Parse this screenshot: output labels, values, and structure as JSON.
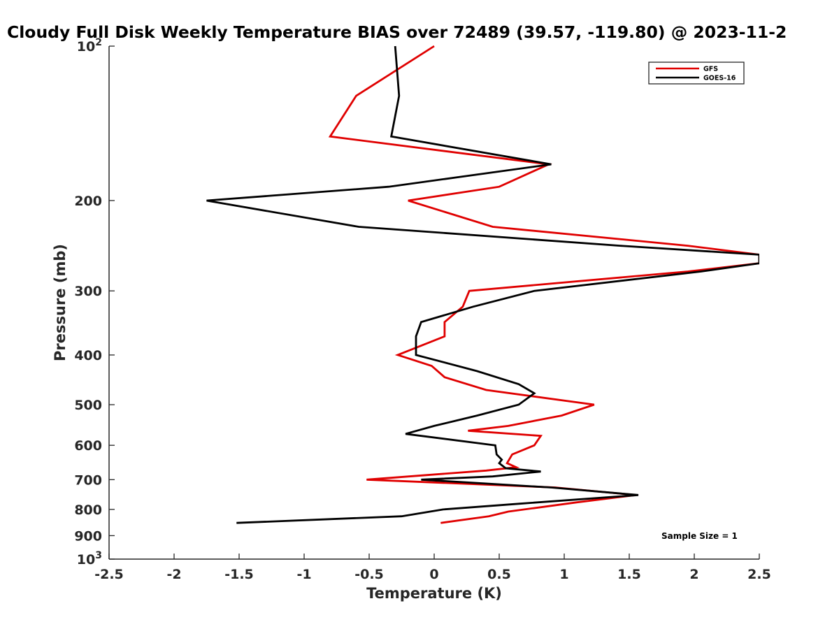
{
  "chart_data": {
    "type": "line",
    "title": "Cloudy Full Disk Weekly Temperature BIAS over 72489 (39.57, -119.80) @ 2023-11-2",
    "xlabel": "Temperature (K)",
    "ylabel": "Pressure (mb)",
    "xlim": [
      -2.5,
      2.5
    ],
    "ylim": [
      100,
      1000
    ],
    "y_scale": "log",
    "y_reversed": true,
    "x_ticks": [
      "-2.5",
      "-2",
      "-1.5",
      "-1",
      "-0.5",
      "0",
      "0.5",
      "1",
      "1.5",
      "2",
      "2.5"
    ],
    "y_ticks": [
      {
        "value": 100,
        "base": "10",
        "exp": "2"
      },
      {
        "value": 200,
        "label": "200"
      },
      {
        "value": 300,
        "label": "300"
      },
      {
        "value": 400,
        "label": "400"
      },
      {
        "value": 500,
        "label": "500"
      },
      {
        "value": 600,
        "label": "600"
      },
      {
        "value": 700,
        "label": "700"
      },
      {
        "value": 800,
        "label": "800"
      },
      {
        "value": 900,
        "label": "900"
      },
      {
        "value": 1000,
        "base": "10",
        "exp": "3"
      }
    ],
    "grid": false,
    "legend_position": "top-right",
    "annotation": "Sample Size = 1",
    "series": [
      {
        "name": "GFS",
        "color": "#e00000",
        "points": [
          [
            0.0,
            100
          ],
          [
            -0.6,
            125
          ],
          [
            -0.8,
            150
          ],
          [
            0.88,
            170
          ],
          [
            0.5,
            188
          ],
          [
            -0.2,
            200
          ],
          [
            0.45,
            225
          ],
          [
            1.95,
            245
          ],
          [
            2.5,
            255
          ],
          [
            2.5,
            265
          ],
          [
            1.95,
            275
          ],
          [
            0.27,
            300
          ],
          [
            0.22,
            322
          ],
          [
            0.08,
            345
          ],
          [
            0.08,
            368
          ],
          [
            -0.28,
            400
          ],
          [
            -0.02,
            420
          ],
          [
            0.08,
            442
          ],
          [
            0.4,
            468
          ],
          [
            1.23,
            500
          ],
          [
            0.98,
            525
          ],
          [
            0.57,
            550
          ],
          [
            0.26,
            562
          ],
          [
            0.82,
            575
          ],
          [
            0.77,
            600
          ],
          [
            0.6,
            625
          ],
          [
            0.56,
            650
          ],
          [
            0.63,
            662
          ],
          [
            0.4,
            672
          ],
          [
            -0.52,
            700
          ],
          [
            0.93,
            725
          ],
          [
            1.55,
            750
          ],
          [
            1.1,
            775
          ],
          [
            0.57,
            808
          ],
          [
            0.42,
            825
          ],
          [
            0.05,
            850
          ]
        ]
      },
      {
        "name": "GOES-16",
        "color": "#000000",
        "points": [
          [
            -0.3,
            100
          ],
          [
            -0.27,
            125
          ],
          [
            -0.33,
            150
          ],
          [
            0.9,
            170
          ],
          [
            -0.35,
            188
          ],
          [
            -1.75,
            200
          ],
          [
            -0.58,
            225
          ],
          [
            1.43,
            245
          ],
          [
            2.5,
            255
          ],
          [
            2.5,
            265
          ],
          [
            2.05,
            275
          ],
          [
            0.77,
            300
          ],
          [
            0.3,
            322
          ],
          [
            -0.1,
            345
          ],
          [
            -0.14,
            368
          ],
          [
            -0.14,
            400
          ],
          [
            0.33,
            430
          ],
          [
            0.65,
            456
          ],
          [
            0.77,
            475
          ],
          [
            0.65,
            500
          ],
          [
            0.33,
            525
          ],
          [
            0.0,
            550
          ],
          [
            -0.22,
            570
          ],
          [
            0.47,
            600
          ],
          [
            0.48,
            625
          ],
          [
            0.52,
            640
          ],
          [
            0.5,
            650
          ],
          [
            0.55,
            665
          ],
          [
            0.82,
            675
          ],
          [
            0.45,
            690
          ],
          [
            -0.1,
            700
          ],
          [
            0.9,
            725
          ],
          [
            1.57,
            750
          ],
          [
            0.65,
            780
          ],
          [
            0.07,
            800
          ],
          [
            -0.25,
            825
          ],
          [
            -1.52,
            850
          ]
        ]
      }
    ]
  }
}
